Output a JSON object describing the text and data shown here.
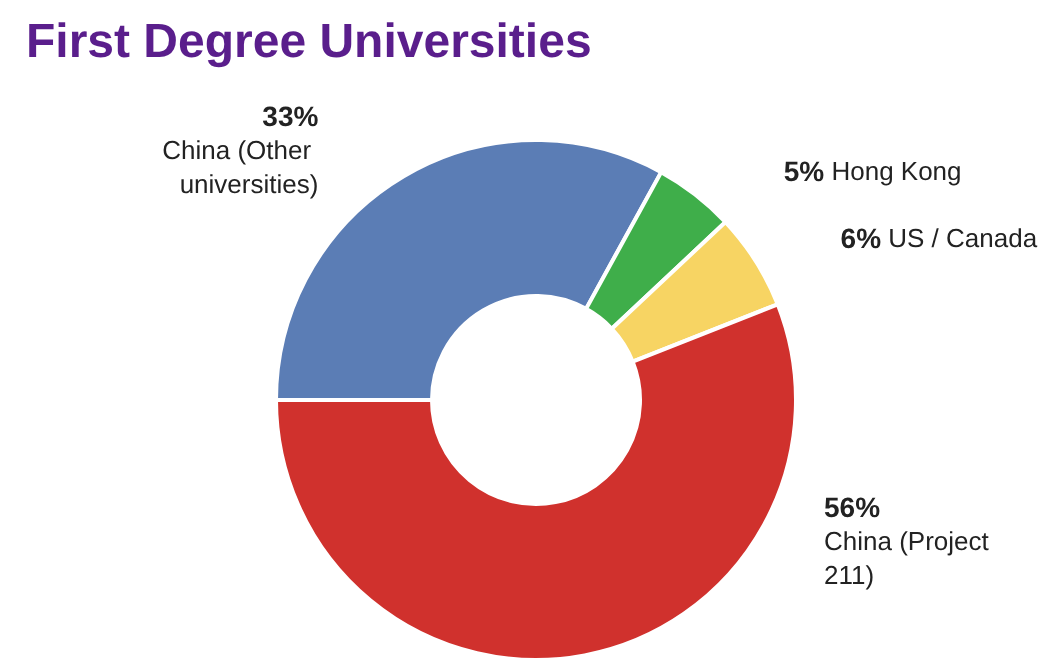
{
  "chart_data": {
    "type": "donut",
    "title": "First Degree Universities",
    "categories": [
      "China (Other universities)",
      "Hong Kong",
      "US / Canada",
      "China (Project 211)"
    ],
    "values": [
      33,
      5,
      6,
      56
    ],
    "colors": [
      "#5b7db5",
      "#3fae4a",
      "#f7d463",
      "#d0312d"
    ],
    "value_labels": [
      "33%",
      "5%",
      "6%",
      "56%"
    ],
    "legend": false
  }
}
